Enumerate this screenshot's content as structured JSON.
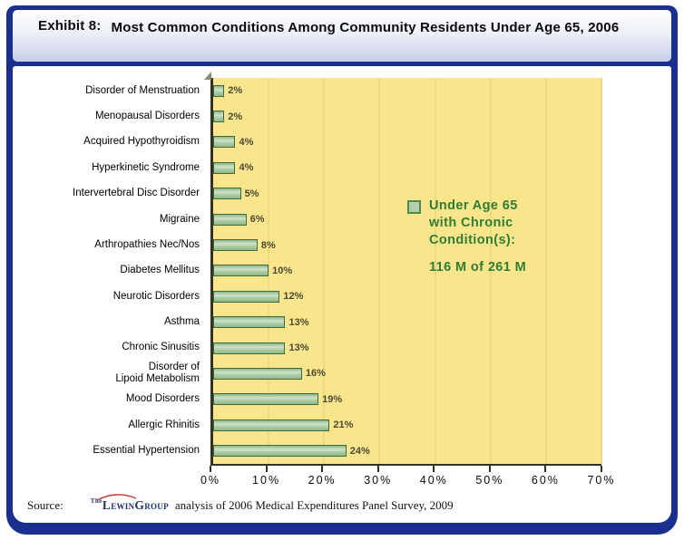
{
  "header": {
    "exhibit": "Exhibit 8:",
    "title": "Most Common Conditions Among Community Residents Under Age 65, 2006"
  },
  "chart_data": {
    "type": "bar",
    "orientation": "horizontal",
    "title": "Exhibit 8: Most Common Conditions Among Community Residents Under Age 65, 2006",
    "categories": [
      "Disorder of Menstruation",
      "Menopausal Disorders",
      "Acquired Hypothyroidism",
      "Hyperkinetic Syndrome",
      "Intervertebral Disc Disorder",
      "Migraine",
      "Arthropathies Nec/Nos",
      "Diabetes Mellitus",
      "Neurotic Disorders",
      "Asthma",
      "Chronic Sinusitis",
      "Disorder of\nLipoid Metabolism",
      "Mood Disorders",
      "Allergic Rhinitis",
      "Essential Hypertension"
    ],
    "values": [
      2,
      2,
      4,
      4,
      5,
      6,
      8,
      10,
      12,
      13,
      13,
      16,
      19,
      21,
      24
    ],
    "value_labels": [
      "2%",
      "2%",
      "4%",
      "4%",
      "5%",
      "6%",
      "8%",
      "10%",
      "12%",
      "13%",
      "13%",
      "16%",
      "19%",
      "21%",
      "24%"
    ],
    "x_ticks": [
      "0%",
      "10%",
      "20%",
      "30%",
      "40%",
      "50%",
      "60%",
      "70%"
    ],
    "xlim": [
      0,
      70
    ],
    "grid": "vertical-major",
    "legend_position": "inside-right",
    "legend": {
      "label": "Under Age 65\nwith Chronic\nCondition(s):",
      "value": "116 M of 261 M"
    },
    "colors": {
      "frame_navy": "#1B2F8E",
      "plot_bg": "#F9E58C",
      "gridline": "#EDDA7E",
      "bar_fill": "#AECDA6",
      "bar_border": "#3E6A3C",
      "axis": "#33331F",
      "value_label": "#4A4A33",
      "legend_text": "#2F7D33",
      "legend_swatch_fill": "#B5CFAE",
      "legend_swatch_border": "#4E8B4E"
    }
  },
  "source": {
    "label": "Source:",
    "logo_the": "The",
    "logo_main": "LewinGroup",
    "text": "analysis of 2006 Medical Expenditures Panel Survey, 2009"
  }
}
